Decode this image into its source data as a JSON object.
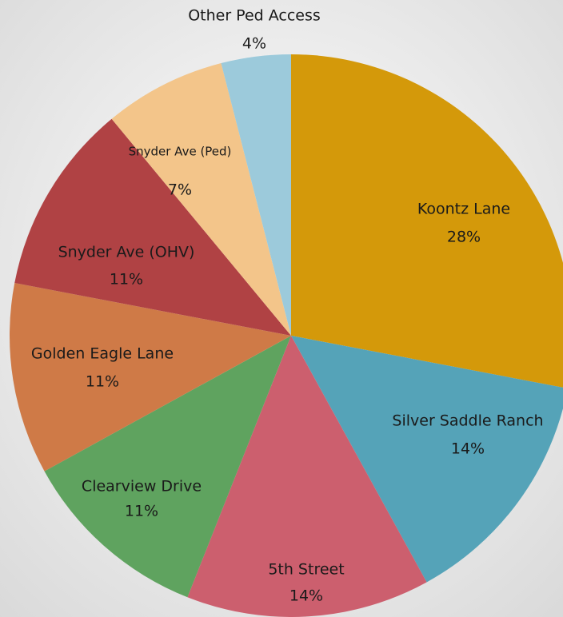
{
  "chart_data": {
    "type": "pie",
    "categories": [
      "Koontz Lane",
      "Silver Saddle Ranch",
      "5th Street",
      "Clearview Drive",
      "Golden Eagle Lane",
      "Snyder Ave (OHV)",
      "Snyder Ave (Ped)",
      "Other Ped Access"
    ],
    "values": [
      28,
      14,
      14,
      11,
      11,
      11,
      7,
      4
    ],
    "value_labels": [
      "28%",
      "14%",
      "14%",
      "11%",
      "11%",
      "11%",
      "7%",
      "4%"
    ],
    "colors": [
      "#d4990a",
      "#55a3b8",
      "#cc5f6e",
      "#5fa35f",
      "#cf7a47",
      "#b04244",
      "#f3c58a",
      "#9ccadb"
    ]
  }
}
